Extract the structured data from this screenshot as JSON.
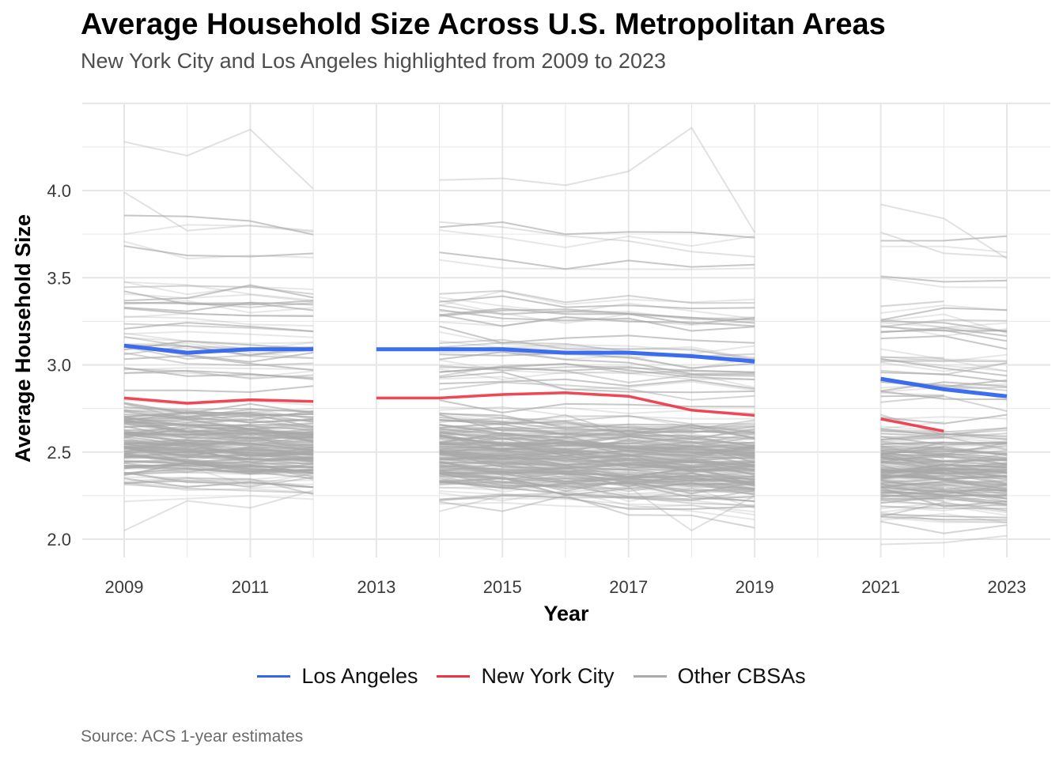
{
  "title": "Average Household Size Across U.S. Metropolitan Areas",
  "subtitle": "New York City and Los Angeles highlighted from 2009 to 2023",
  "caption": "Source: ACS 1-year estimates",
  "chart_data": {
    "type": "line",
    "title": "Average Household Size Across U.S. Metropolitan Areas",
    "subtitle": "New York City and Los Angeles highlighted from 2009 to 2023",
    "xlabel": "Year",
    "ylabel": "Average Household Size",
    "xlim": [
      2009,
      2023
    ],
    "ylim": [
      1.95,
      4.45
    ],
    "x_ticks": [
      2009,
      2011,
      2013,
      2015,
      2017,
      2019,
      2021,
      2023
    ],
    "y_ticks": [
      2.0,
      2.5,
      3.0,
      3.5,
      4.0
    ],
    "y_tick_labels": [
      "2.0",
      "2.5",
      "3.0",
      "3.5",
      "4.0"
    ],
    "grid": true,
    "legend_position": "bottom",
    "x": [
      2009,
      2010,
      2011,
      2012,
      2013,
      2014,
      2015,
      2016,
      2017,
      2018,
      2019,
      2020,
      2021,
      2022,
      2023
    ],
    "series": [
      {
        "name": "Los Angeles",
        "color": "#3366ee",
        "values": [
          3.11,
          3.07,
          3.09,
          3.09,
          null,
          3.09,
          3.09,
          3.07,
          3.07,
          3.05,
          3.02,
          null,
          2.92,
          2.86,
          2.82
        ]
      },
      {
        "name": "New York City",
        "color": "#ee3344",
        "values": [
          2.81,
          2.78,
          2.8,
          2.79,
          null,
          2.81,
          2.83,
          2.84,
          2.82,
          2.74,
          2.71,
          null,
          2.69,
          2.62,
          null
        ]
      },
      {
        "name": "Other CBSAs",
        "color": "#aaaaaa",
        "note_values": "approximately 380 metropolitan series, mostly between 2.2 and 3.6",
        "values_example": [
          [
            4.28,
            4.2,
            4.35,
            4.01,
            null,
            4.06,
            4.07,
            4.03,
            4.11,
            4.36,
            3.76,
            null,
            3.76,
            3.64,
            3.62
          ],
          [
            3.99,
            3.77,
            3.8,
            3.77,
            null,
            3.82,
            3.79,
            3.74,
            3.71,
            3.65,
            3.62,
            null,
            3.92,
            3.84,
            3.61
          ],
          [
            2.05,
            2.22,
            2.18,
            2.28,
            null,
            2.16,
            2.25,
            2.27,
            2.3,
            2.05,
            2.25,
            null,
            1.97,
            1.98,
            2.02
          ]
        ]
      }
    ]
  },
  "legend": {
    "items": [
      {
        "label": "Los Angeles",
        "color": "#3366ee"
      },
      {
        "label": "New York City",
        "color": "#ee3344"
      },
      {
        "label": "Other CBSAs",
        "color": "#aaaaaa"
      }
    ]
  }
}
